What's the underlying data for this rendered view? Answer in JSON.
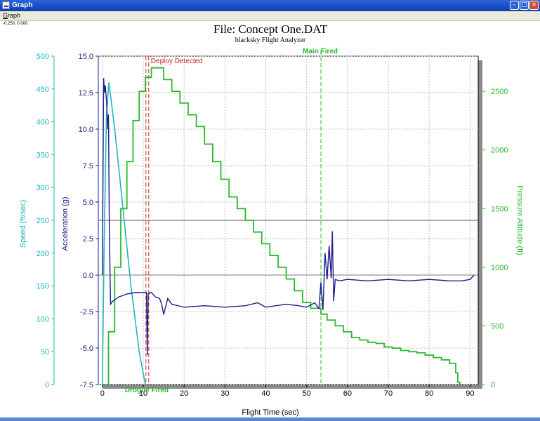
{
  "window": {
    "title": "Graph"
  },
  "menu": {
    "graph_label": "Graph"
  },
  "status": {
    "cursor_readout": "-0.250, 0.000"
  },
  "chart_data": {
    "type": "line",
    "title": "File: Concept One.DAT",
    "subtitle": "blacksky Flight Analyzer",
    "xlabel": "Flight Time (sec)",
    "xlim": [
      -1,
      92
    ],
    "xticks": [
      0,
      10,
      20,
      30,
      40,
      50,
      60,
      70,
      80,
      90
    ],
    "axes": {
      "speed": {
        "label": "Speed (ft/sec)",
        "ylim": [
          0,
          500
        ],
        "ticks": [
          0,
          50,
          100,
          150,
          200,
          250,
          300,
          350,
          400,
          450,
          500
        ],
        "color": "#1fb8b8"
      },
      "acceleration": {
        "label": "Acceleration (g)",
        "ylim": [
          -7.5,
          15.0
        ],
        "ticks": [
          "-7.5",
          "-5.0",
          "-2.5",
          "0.0",
          "2.5",
          "5.0",
          "7.5",
          "10.0",
          "12.5",
          "15.0"
        ],
        "color": "#1c1c8c"
      },
      "altitude": {
        "label": "Pressure Altitude (ft)",
        "ylim": [
          0,
          2800
        ],
        "ticks": [
          0,
          500,
          1000,
          1500,
          2000,
          2500
        ],
        "color": "#2cb82c"
      }
    },
    "events": [
      {
        "label": "Deploy Detected",
        "x": 11,
        "color": "#d02020"
      },
      {
        "label": "Main Fired",
        "x": 53.5,
        "color": "#2cb82c"
      },
      {
        "label": "Drogue Fired",
        "x": 11,
        "color": "#2cb82c"
      }
    ],
    "series": [
      {
        "name": "Speed",
        "axis": "speed",
        "x": [
          0,
          0.4,
          1.0,
          1.6,
          3,
          5,
          7,
          9,
          10.5
        ],
        "values": [
          0,
          200,
          410,
          460,
          390,
          270,
          150,
          50,
          0
        ]
      },
      {
        "name": "Acceleration",
        "axis": "acceleration",
        "x": [
          0,
          0.3,
          0.5,
          0.7,
          1.0,
          1.3,
          1.5,
          1.7,
          2.0,
          2.5,
          4,
          6,
          8,
          10,
          10.8,
          11.0,
          11.2,
          11.4,
          11.6,
          12,
          13,
          14,
          14.5,
          15,
          16,
          17,
          20,
          25,
          30,
          35,
          38,
          40,
          45,
          48,
          50,
          52,
          53,
          53.5,
          54,
          54.5,
          55,
          55.5,
          56,
          56.3,
          56.6,
          57,
          58,
          60,
          65,
          70,
          75,
          80,
          85,
          88,
          90,
          91
        ],
        "values": [
          0,
          13.5,
          12.5,
          13.0,
          12.0,
          10.0,
          11.0,
          3.0,
          -2.0,
          -1.8,
          -1.5,
          -1.3,
          -1.2,
          -1.2,
          -1.2,
          -5.5,
          -1.3,
          -1.3,
          -1.2,
          -1.2,
          -1.5,
          -1.6,
          -2.0,
          -2.7,
          -1.6,
          -2.0,
          -2.2,
          -2.1,
          -2.2,
          -2.1,
          -1.9,
          -2.2,
          -2.0,
          -2.1,
          -2.2,
          -1.9,
          -2.3,
          -0.5,
          -2.4,
          1.5,
          -0.3,
          2.0,
          -0.2,
          3.0,
          -1.8,
          -0.3,
          -0.4,
          -0.3,
          -0.4,
          -0.3,
          -0.4,
          -0.3,
          -0.4,
          -0.4,
          -0.3,
          0.0
        ]
      },
      {
        "name": "Pressure Altitude",
        "axis": "altitude",
        "x": [
          0,
          1.5,
          3,
          4.5,
          6,
          7.5,
          9,
          10.5,
          12,
          14,
          15,
          17,
          19,
          21,
          23,
          25,
          27,
          29,
          31,
          33,
          35,
          37,
          39,
          41,
          43,
          45,
          47,
          49,
          51,
          53.5,
          55,
          57,
          59,
          61,
          63,
          65,
          67,
          69,
          71,
          73,
          75,
          77,
          79,
          81,
          83,
          85,
          86.5,
          87,
          87.5
        ],
        "values": [
          0,
          450,
          1000,
          1500,
          1900,
          2250,
          2500,
          2620,
          2700,
          2700,
          2600,
          2500,
          2400,
          2300,
          2200,
          2050,
          1900,
          1750,
          1600,
          1500,
          1400,
          1300,
          1200,
          1100,
          1000,
          900,
          800,
          700,
          650,
          600,
          550,
          500,
          450,
          400,
          380,
          360,
          350,
          320,
          310,
          290,
          280,
          270,
          250,
          230,
          210,
          180,
          100,
          20,
          0
        ]
      }
    ]
  }
}
